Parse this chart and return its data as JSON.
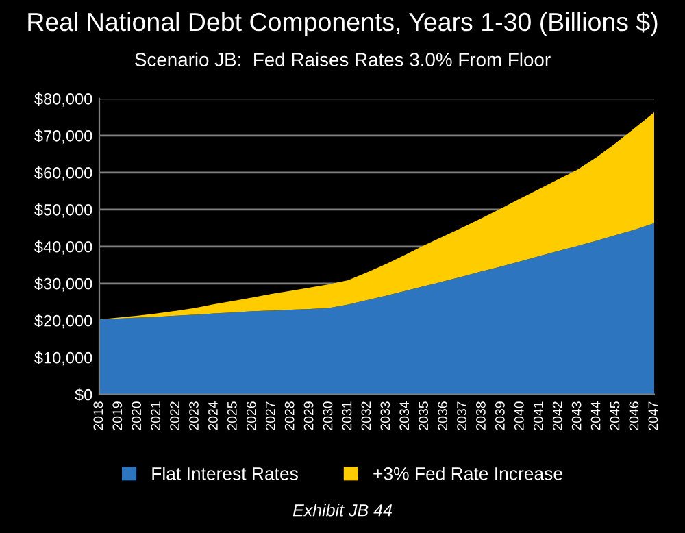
{
  "chart_data": {
    "type": "area",
    "stacked": true,
    "title": "Real National Debt Components, Years 1-30 (Billions $)",
    "subtitle": "Scenario JB:  Fed Raises Rates 3.0% From Floor",
    "annotations": [
      "Exhibit JB 44"
    ],
    "categories": [
      "2018",
      "2019",
      "2020",
      "2021",
      "2022",
      "2023",
      "2024",
      "2025",
      "2026",
      "2027",
      "2028",
      "2029",
      "2030",
      "2031",
      "2032",
      "2033",
      "2034",
      "2035",
      "2036",
      "2037",
      "2038",
      "2039",
      "2040",
      "2041",
      "2042",
      "2043",
      "2044",
      "2045",
      "2046",
      "2047"
    ],
    "series": [
      {
        "name": "Flat Interest Rates",
        "color": "#2e75c0",
        "values": [
          20300,
          20500,
          20800,
          21000,
          21300,
          21600,
          21900,
          22200,
          22500,
          22700,
          22900,
          23100,
          23400,
          24300,
          25500,
          26700,
          28000,
          29300,
          30600,
          31900,
          33300,
          34600,
          36000,
          37400,
          38800,
          40200,
          41600,
          43100,
          44600,
          46300
        ]
      },
      {
        "name": "+3% Fed Rate Increase",
        "color": "#ffcc00",
        "values": [
          0,
          300,
          500,
          900,
          1300,
          1800,
          2500,
          3100,
          3700,
          4500,
          5100,
          5800,
          6400,
          6600,
          7500,
          8600,
          9800,
          11100,
          12200,
          13300,
          14400,
          15700,
          17000,
          18200,
          19400,
          20600,
          22600,
          24900,
          27500,
          30000
        ]
      }
    ],
    "ylim": [
      0,
      80000
    ],
    "yticks": [
      {
        "value": 0,
        "label": "$0"
      },
      {
        "value": 10000,
        "label": "$10,000"
      },
      {
        "value": 20000,
        "label": "$20,000"
      },
      {
        "value": 30000,
        "label": "$30,000"
      },
      {
        "value": 40000,
        "label": "$40,000"
      },
      {
        "value": 50000,
        "label": "$50,000"
      },
      {
        "value": 60000,
        "label": "$60,000"
      },
      {
        "value": 70000,
        "label": "$70,000"
      },
      {
        "value": 80000,
        "label": "$80,000"
      }
    ],
    "grid": "y",
    "legend": "bottom"
  }
}
